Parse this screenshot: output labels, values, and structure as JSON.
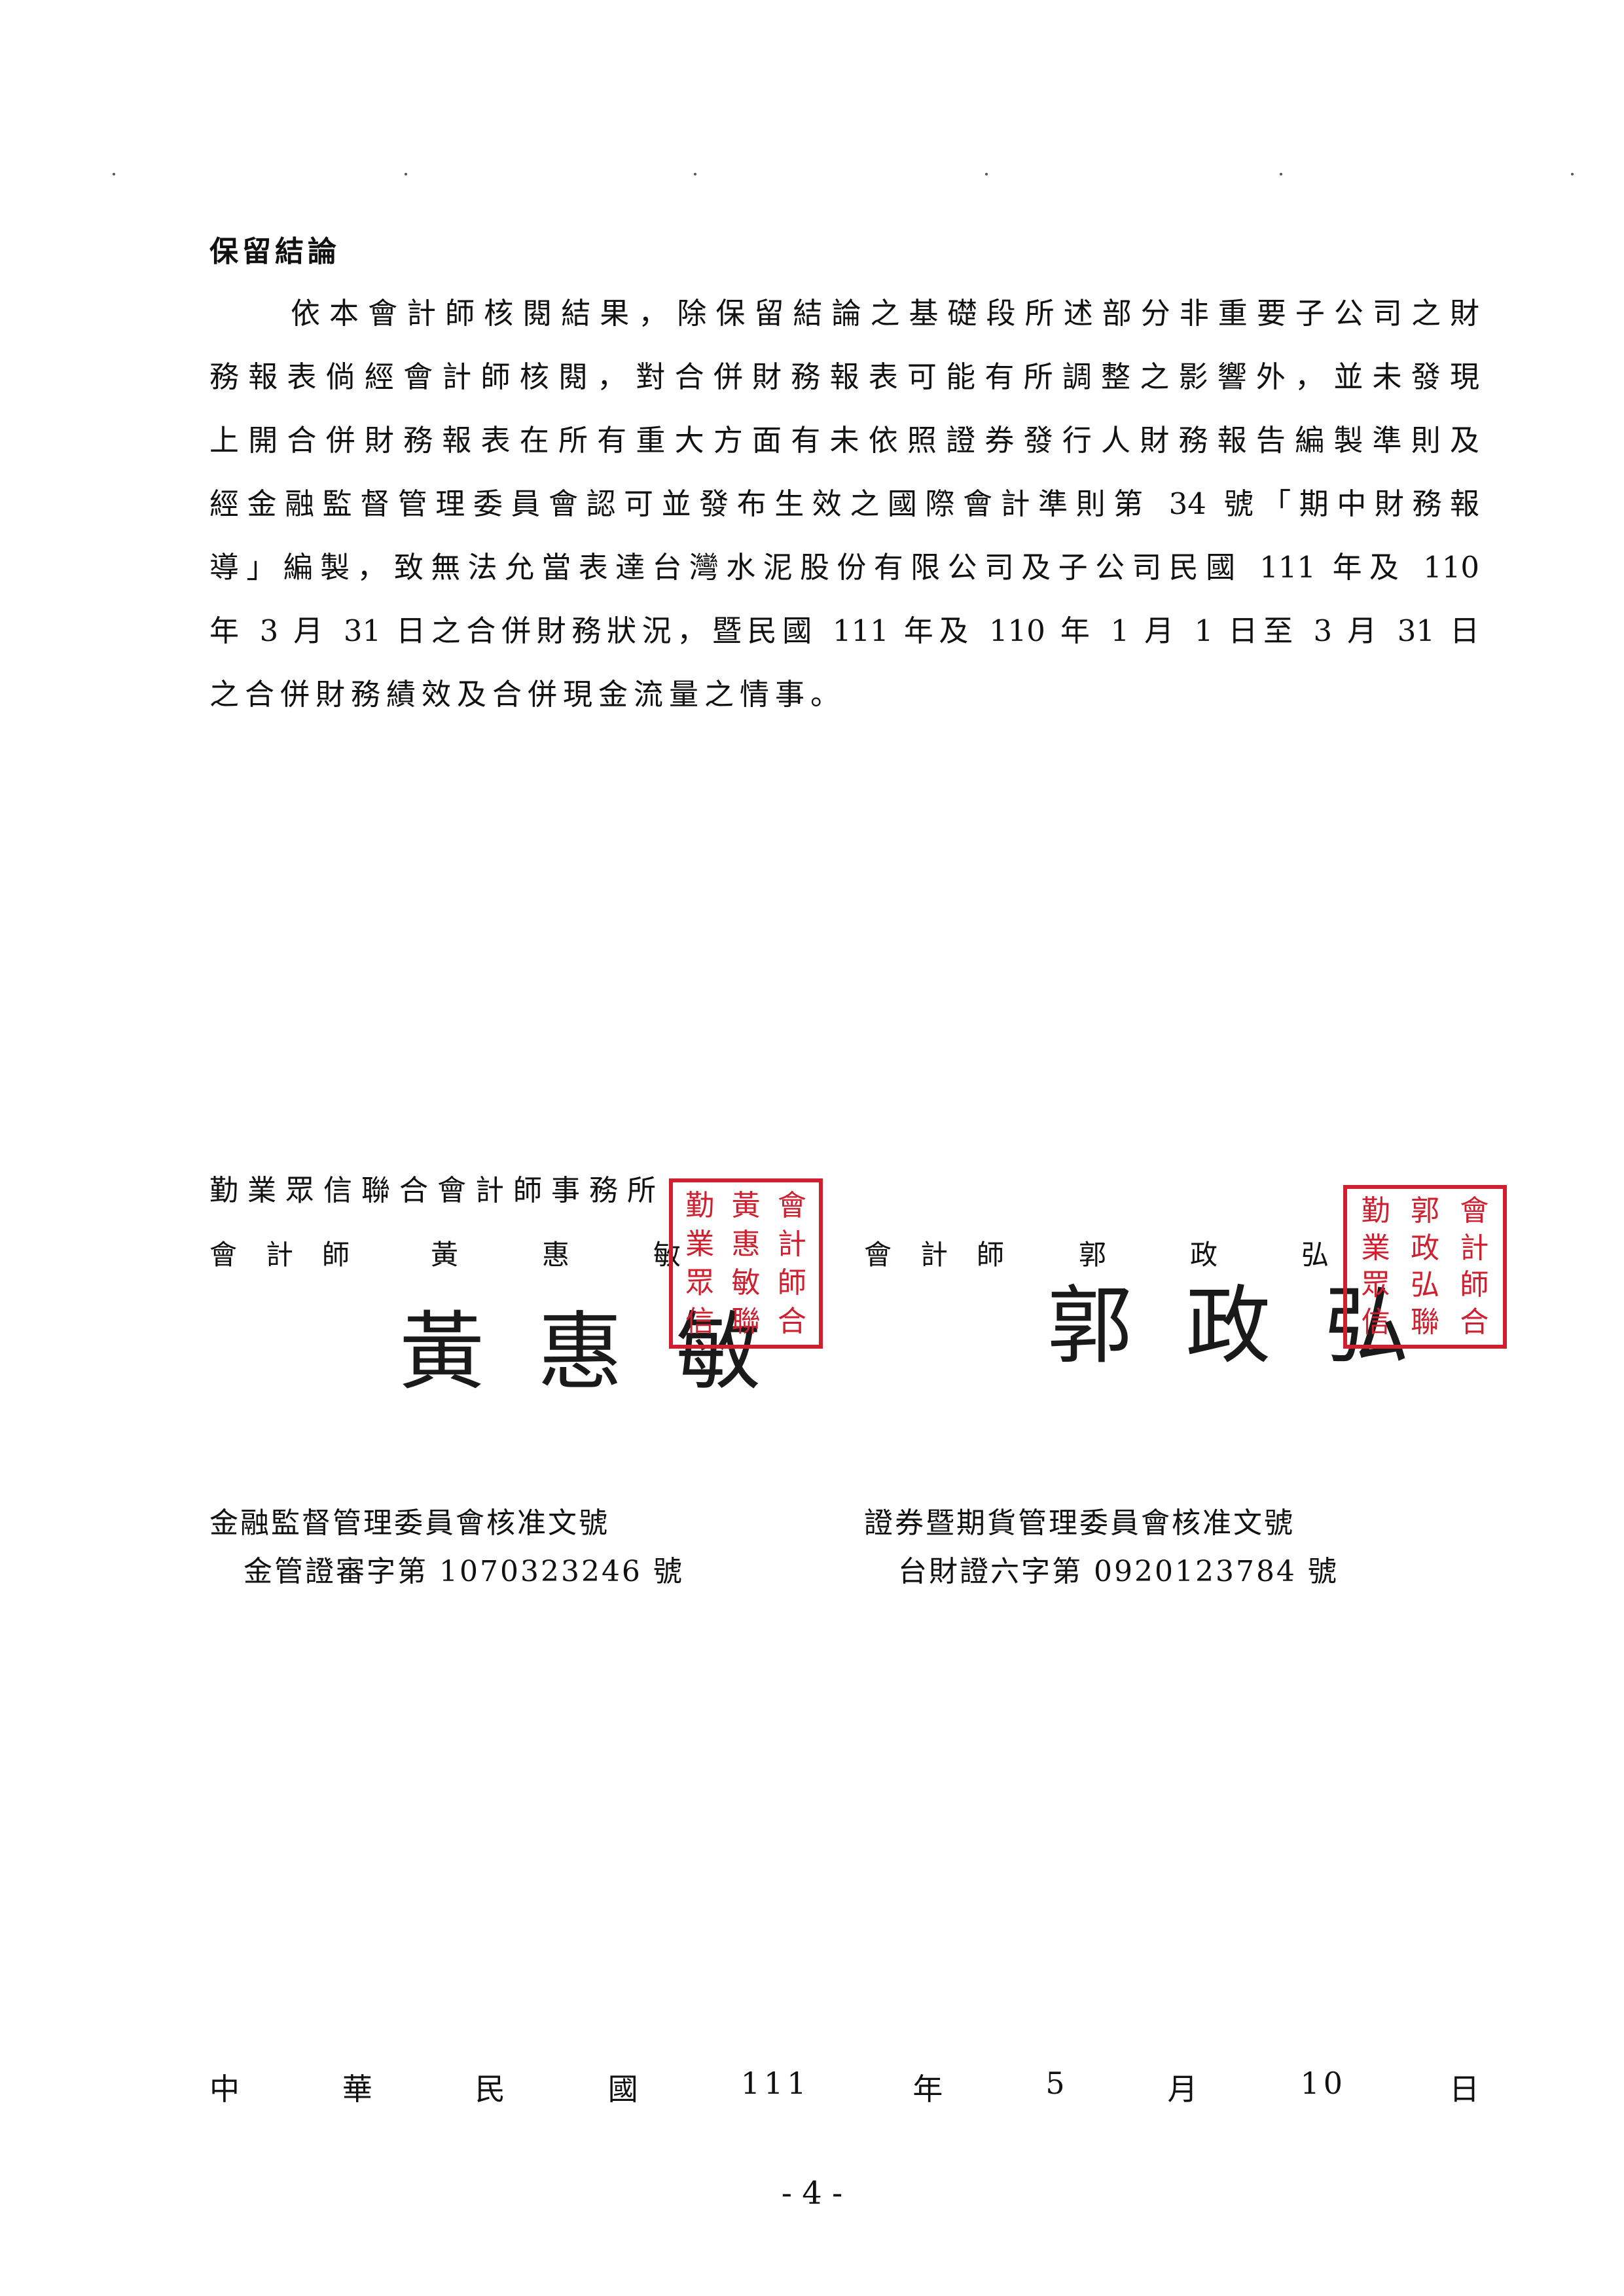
{
  "heading": "保留結論",
  "paragraph_lines": [
    "依本會計師核閱結果，除保留結論之基礎段所述部分非重要子公司之財",
    "務報表倘經會計師核閱，對合併財務報表可能有所調整之影響外，並未發現",
    "上開合併財務報表在所有重大方面有未依照證券發行人財務報告編製準則及",
    "經金融監督管理委員會認可並發布生效之國際會計準則第 34 號「期中財務報",
    "導」編製，致無法允當表達台灣水泥股份有限公司及子公司民國 111 年及 110",
    "年 3 月 31 日之合併財務狀況，暨民國 111 年及 110 年 1 月 1 日至 3 月 31 日",
    "之合併財務績效及合併現金流量之情事。"
  ],
  "firm_name": "勤業眾信聯合會計師事務所",
  "cpa_left": {
    "title": "會計師",
    "name": [
      "黃",
      "惠",
      "敏"
    ],
    "signature": "黃 惠 敏"
  },
  "cpa_right": {
    "title": "會計師",
    "name": [
      "郭",
      "政",
      "弘"
    ],
    "signature": "郭 政 弘"
  },
  "seal_left": [
    "勤",
    "黃",
    "會",
    "業",
    "惠",
    "計",
    "眾",
    "敏",
    "師",
    "信",
    "聯",
    "合"
  ],
  "seal_right": [
    "勤",
    "郭",
    "會",
    "業",
    "政",
    "計",
    "眾",
    "弘",
    "師",
    "信",
    "聯",
    "合"
  ],
  "approval_left": {
    "label": "金融監督管理委員會核准文號",
    "number": "金管證審字第 1070323246 號"
  },
  "approval_right": {
    "label": "證券暨期貨管理委員會核准文號",
    "number": "台財證六字第 0920123784 號"
  },
  "date_parts": [
    "中",
    "華",
    "民",
    "國",
    "111",
    "年",
    "5",
    "月",
    "10",
    "日"
  ],
  "page_number": "- 4 -"
}
